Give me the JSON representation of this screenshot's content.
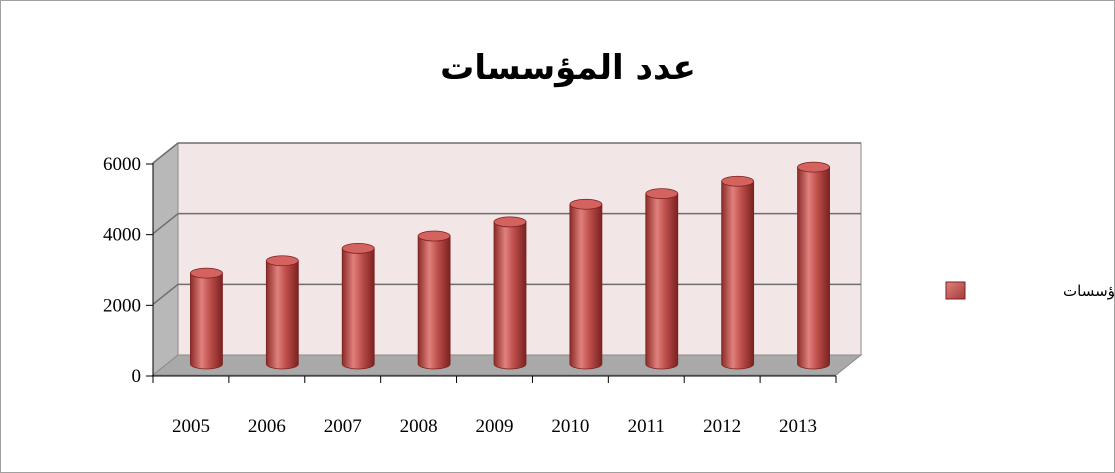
{
  "chart_data": {
    "type": "bar",
    "title": "عدد المؤسسات",
    "categories": [
      "2005",
      "2006",
      "2007",
      "2008",
      "2009",
      "2010",
      "2011",
      "2012",
      "2013"
    ],
    "series": [
      {
        "name": "عدد المؤسسات",
        "values": [
          2600,
          2950,
          3300,
          3650,
          4050,
          4550,
          4850,
          5200,
          5600
        ]
      }
    ],
    "ylim": [
      0,
      6000
    ],
    "yticks": [
      "0",
      "2000",
      "4000",
      "6000"
    ],
    "grid": true,
    "legend_position": "right",
    "colors": {
      "bar": "#c0504d",
      "bar_dark": "#8c2b28",
      "bar_light": "#e0817e",
      "back_wall": "#f2e6e6",
      "side_wall": "#b8b8b8",
      "floor": "#a9a9a9",
      "grid": "#6e6e6e"
    }
  }
}
